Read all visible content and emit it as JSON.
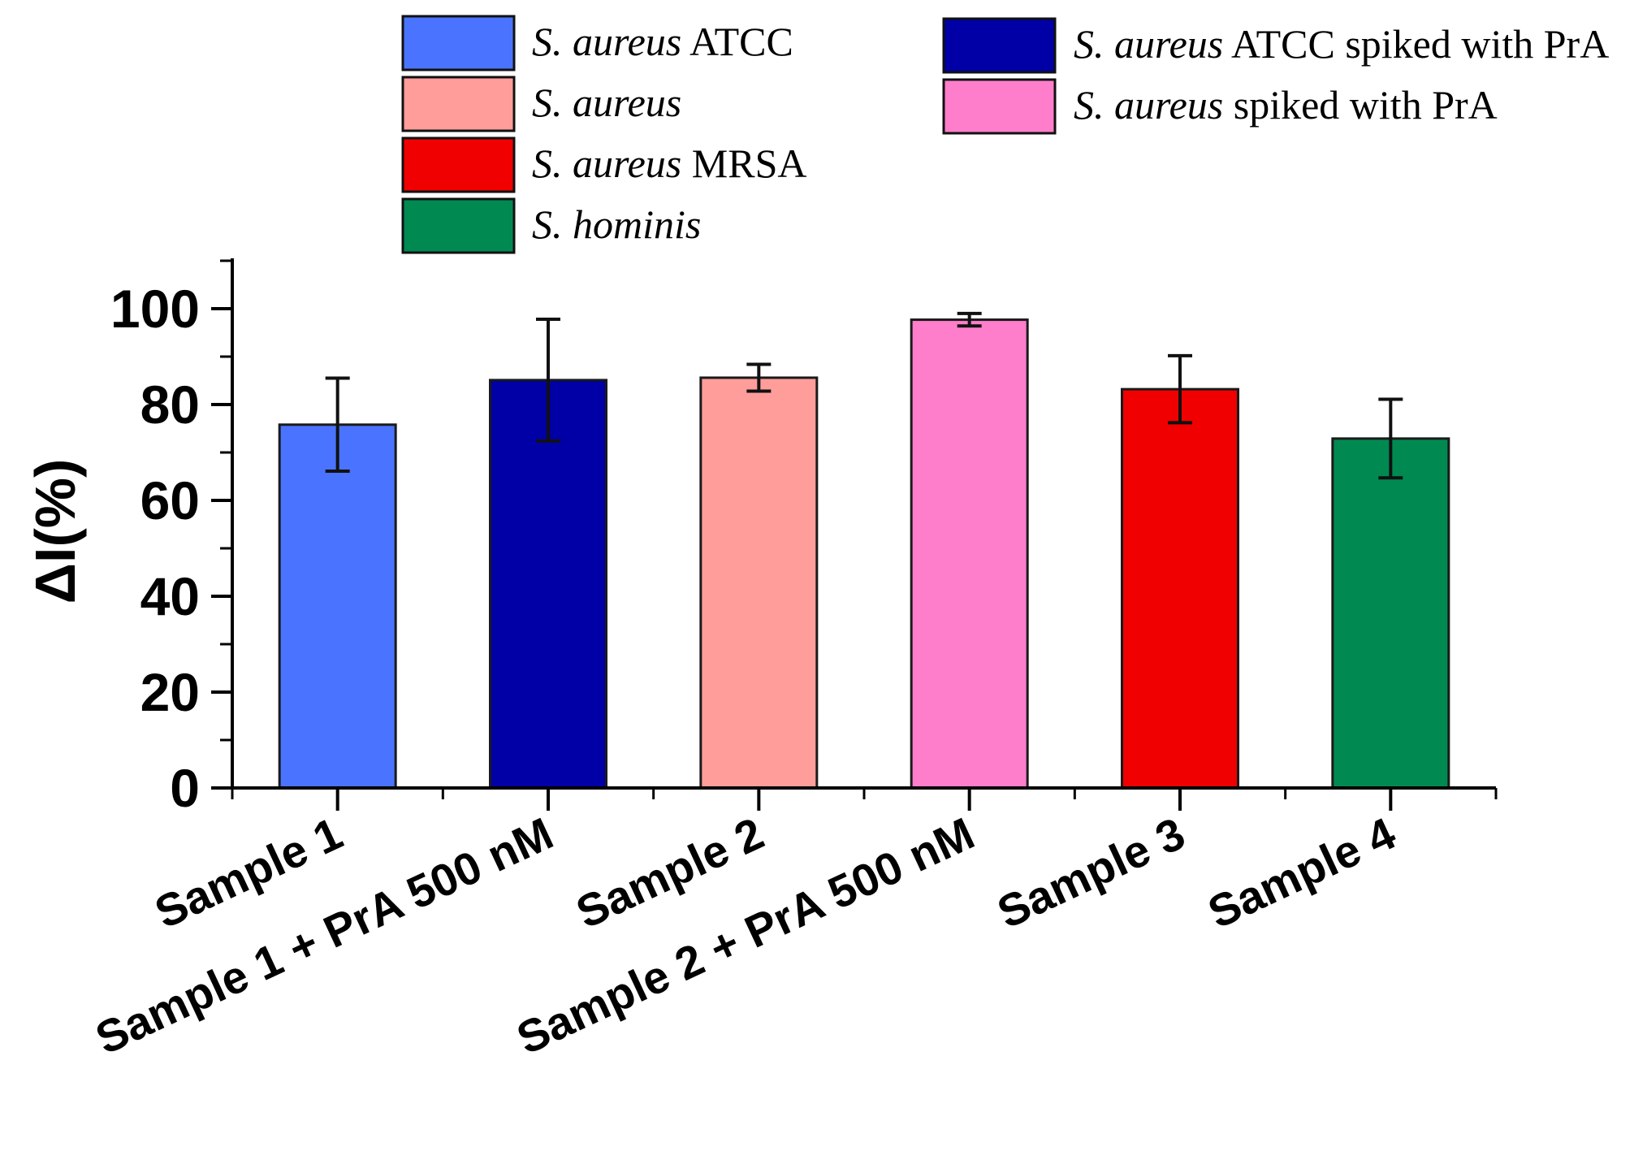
{
  "chart_data": {
    "type": "bar",
    "title": "",
    "xlabel": "",
    "ylabel": "ΔI(%)",
    "ylim": [
      0,
      110
    ],
    "yticks": [
      0,
      20,
      40,
      60,
      80,
      100
    ],
    "categories": [
      "Sample 1",
      "Sample 1 + PrA 500 nM",
      "Sample 2",
      "Sample 2 + PrA 500 nM",
      "Sample 3",
      "Sample 4"
    ],
    "values": [
      75.8,
      85.1,
      85.6,
      97.7,
      83.2,
      72.9
    ],
    "errors": [
      9.7,
      12.7,
      2.8,
      1.3,
      7.0,
      8.2
    ],
    "bar_colors": [
      "#4a74ff",
      "#0000a6",
      "#ff9d9b",
      "#ff7ecb",
      "#f00000",
      "#008a51"
    ],
    "grid": false,
    "legend": {
      "placement": "top",
      "entries": [
        {
          "species": "S. aureus",
          "suffix": " ATCC",
          "color": "#4a74ff"
        },
        {
          "species": "S. aureus",
          "suffix": "",
          "color": "#ff9d9b"
        },
        {
          "species": "S. aureus",
          "suffix": " MRSA",
          "color": "#f00000"
        },
        {
          "species": "S. hominis",
          "suffix": "",
          "color": "#008a51"
        },
        {
          "species": "S. aureus",
          "suffix": " ATCC spiked with PrA",
          "color": "#0000a6"
        },
        {
          "species": "S. aureus",
          "suffix": " spiked with PrA",
          "color": "#ff7ecb"
        }
      ]
    }
  }
}
